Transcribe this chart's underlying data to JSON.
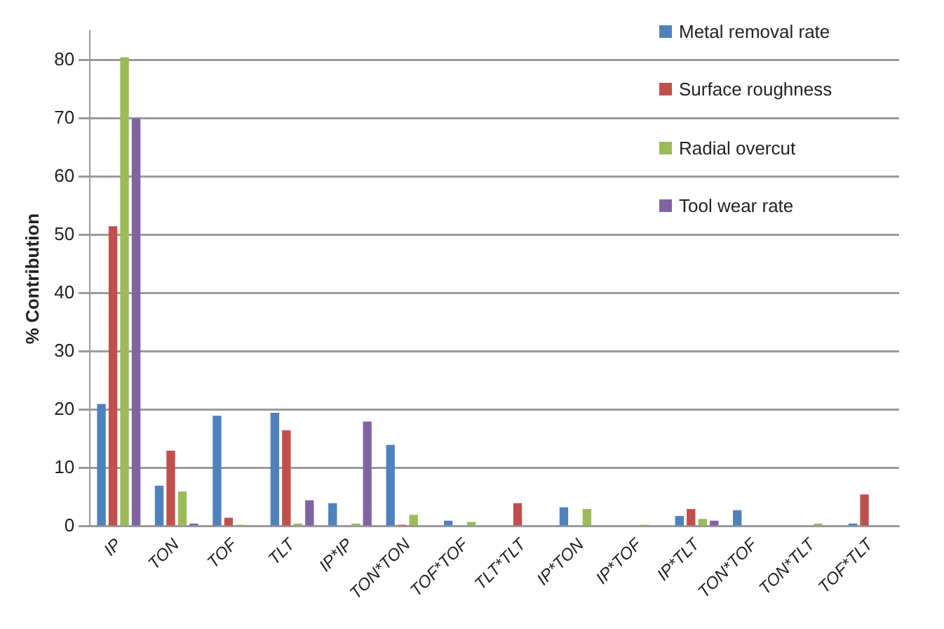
{
  "chart_data": {
    "type": "bar",
    "ylabel": "% Contribution",
    "categories": [
      "IP",
      "TON",
      "TOF",
      "TLT",
      "IP*IP",
      "TON*TON",
      "TOF*TOF",
      "TLT*TLT",
      "IP*TON",
      "IP*TOF",
      "IP*TLT",
      "TON*TOF",
      "TON*TLT",
      "TOF*TLT"
    ],
    "series": [
      {
        "name": "Metal removal rate",
        "color": "#4f81bd",
        "values": [
          21,
          7,
          19,
          19.5,
          4,
          14,
          1,
          0,
          3.3,
          0,
          1.8,
          2.8,
          0,
          0.5
        ]
      },
      {
        "name": "Surface roughness",
        "color": "#c0504d",
        "values": [
          51.5,
          13,
          1.5,
          16.5,
          0,
          0.3,
          0,
          4,
          0,
          0,
          3,
          0,
          0,
          5.5
        ]
      },
      {
        "name": "Radial overcut",
        "color": "#9bbb59",
        "values": [
          80.5,
          6,
          0.3,
          0.5,
          0.5,
          2,
          0.8,
          0,
          3,
          0.3,
          1.3,
          0,
          0.5,
          0
        ]
      },
      {
        "name": "Tool wear rate",
        "color": "#8064a2",
        "values": [
          70,
          0.5,
          0,
          4.5,
          18,
          0,
          0,
          0,
          0,
          0,
          1,
          0,
          0,
          0
        ]
      }
    ],
    "ylim": [
      0,
      85
    ],
    "yticks": [
      0,
      10,
      20,
      30,
      40,
      50,
      60,
      70,
      80
    ],
    "grid": "y",
    "legend": "top right"
  }
}
